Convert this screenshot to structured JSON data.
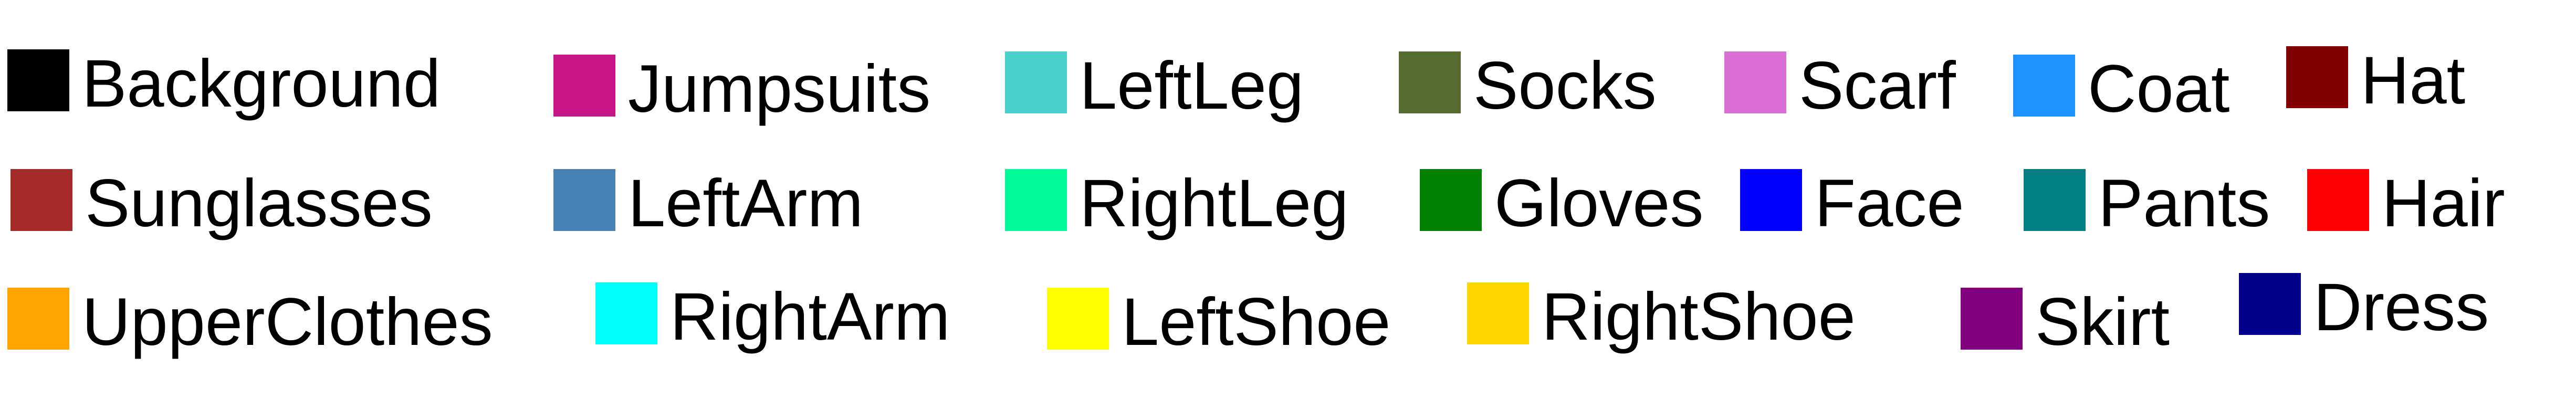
{
  "legend": {
    "items": [
      {
        "label": "Background",
        "color": "#000000"
      },
      {
        "label": "Jumpsuits",
        "color": "#C71585"
      },
      {
        "label": "LeftLeg",
        "color": "#48D1CC"
      },
      {
        "label": "Socks",
        "color": "#556B2F"
      },
      {
        "label": "Scarf",
        "color": "#DA70D6"
      },
      {
        "label": "Coat",
        "color": "#1E90FF"
      },
      {
        "label": "Hat",
        "color": "#800000"
      },
      {
        "label": "Sunglasses",
        "color": "#A52A2A"
      },
      {
        "label": "LeftArm",
        "color": "#4682B4"
      },
      {
        "label": "RightLeg",
        "color": "#00FA9A"
      },
      {
        "label": "Gloves",
        "color": "#008000"
      },
      {
        "label": "Face",
        "color": "#0000FF"
      },
      {
        "label": "Pants",
        "color": "#008080"
      },
      {
        "label": "Hair",
        "color": "#FF0000"
      },
      {
        "label": "UpperClothes",
        "color": "#FFA500"
      },
      {
        "label": "RightArm",
        "color": "#00FFFF"
      },
      {
        "label": "LeftShoe",
        "color": "#FFFF00"
      },
      {
        "label": "RightShoe",
        "color": "#FFD700"
      },
      {
        "label": "Skirt",
        "color": "#800080"
      },
      {
        "label": "Dress",
        "color": "#00008B"
      }
    ]
  }
}
